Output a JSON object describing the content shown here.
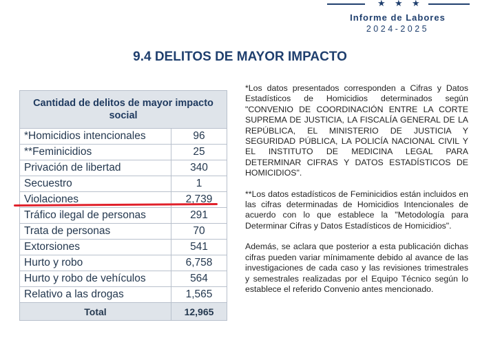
{
  "header": {
    "report": "Informe de Labores",
    "years": "2024-2025"
  },
  "title": "9.4 DELITOS DE MAYOR IMPACTO",
  "table": {
    "heading": "Cantidad de delitos de mayor impacto social",
    "rows": [
      {
        "label": "*Homicidios intencionales",
        "value": "96"
      },
      {
        "label": "**Feminicidios",
        "value": "25"
      },
      {
        "label": "Privación de libertad",
        "value": "340"
      },
      {
        "label": "Secuestro",
        "value": "1"
      },
      {
        "label": "Violaciones",
        "value": "2,739"
      },
      {
        "label": "Tráfico ilegal de personas",
        "value": "291"
      },
      {
        "label": "Trata de personas",
        "value": "70"
      },
      {
        "label": "Extorsiones",
        "value": "541"
      },
      {
        "label": "Hurto y robo",
        "value": "6,758"
      },
      {
        "label": "Hurto y robo de vehículos",
        "value": "564"
      },
      {
        "label": "Relativo a las drogas",
        "value": "1,565"
      }
    ],
    "total_label": "Total",
    "total_value": "12,965"
  },
  "notes": [
    "*Los datos presentados corresponden a Cifras y Datos Estadísticos de Homicidios determinados según \"CONVENIO DE COORDINACIÓN ENTRE LA CORTE SUPREMA DE JUSTICIA, LA FISCALÍA GENERAL DE LA REPÚBLICA, EL MINISTERIO DE JUSTICIA Y SEGURIDAD PÚBLICA, LA POLICÍA NACIONAL CIVIL Y EL INSTITUTO DE MEDICINA LEGAL PARA DETERMINAR CIFRAS Y DATOS ESTADÍSTICOS DE HOMICIDIOS\".",
    "**Los datos estadísticos de Feminicidios están incluidos en las cifras determinadas de Homicidios Intencionales de acuerdo con lo que establece la \"Metodología para Determinar Cifras y Datos Estadísticos de Homicidios\".",
    "Además, se aclara que posterior a esta publicación dichas cifras pueden variar mínimamente debido al avance de las investigaciones de cada caso y las revisiones trimestrales y semestrales realizadas por el Equipo Técnico según lo establece el referido Convenio antes mencionado."
  ]
}
